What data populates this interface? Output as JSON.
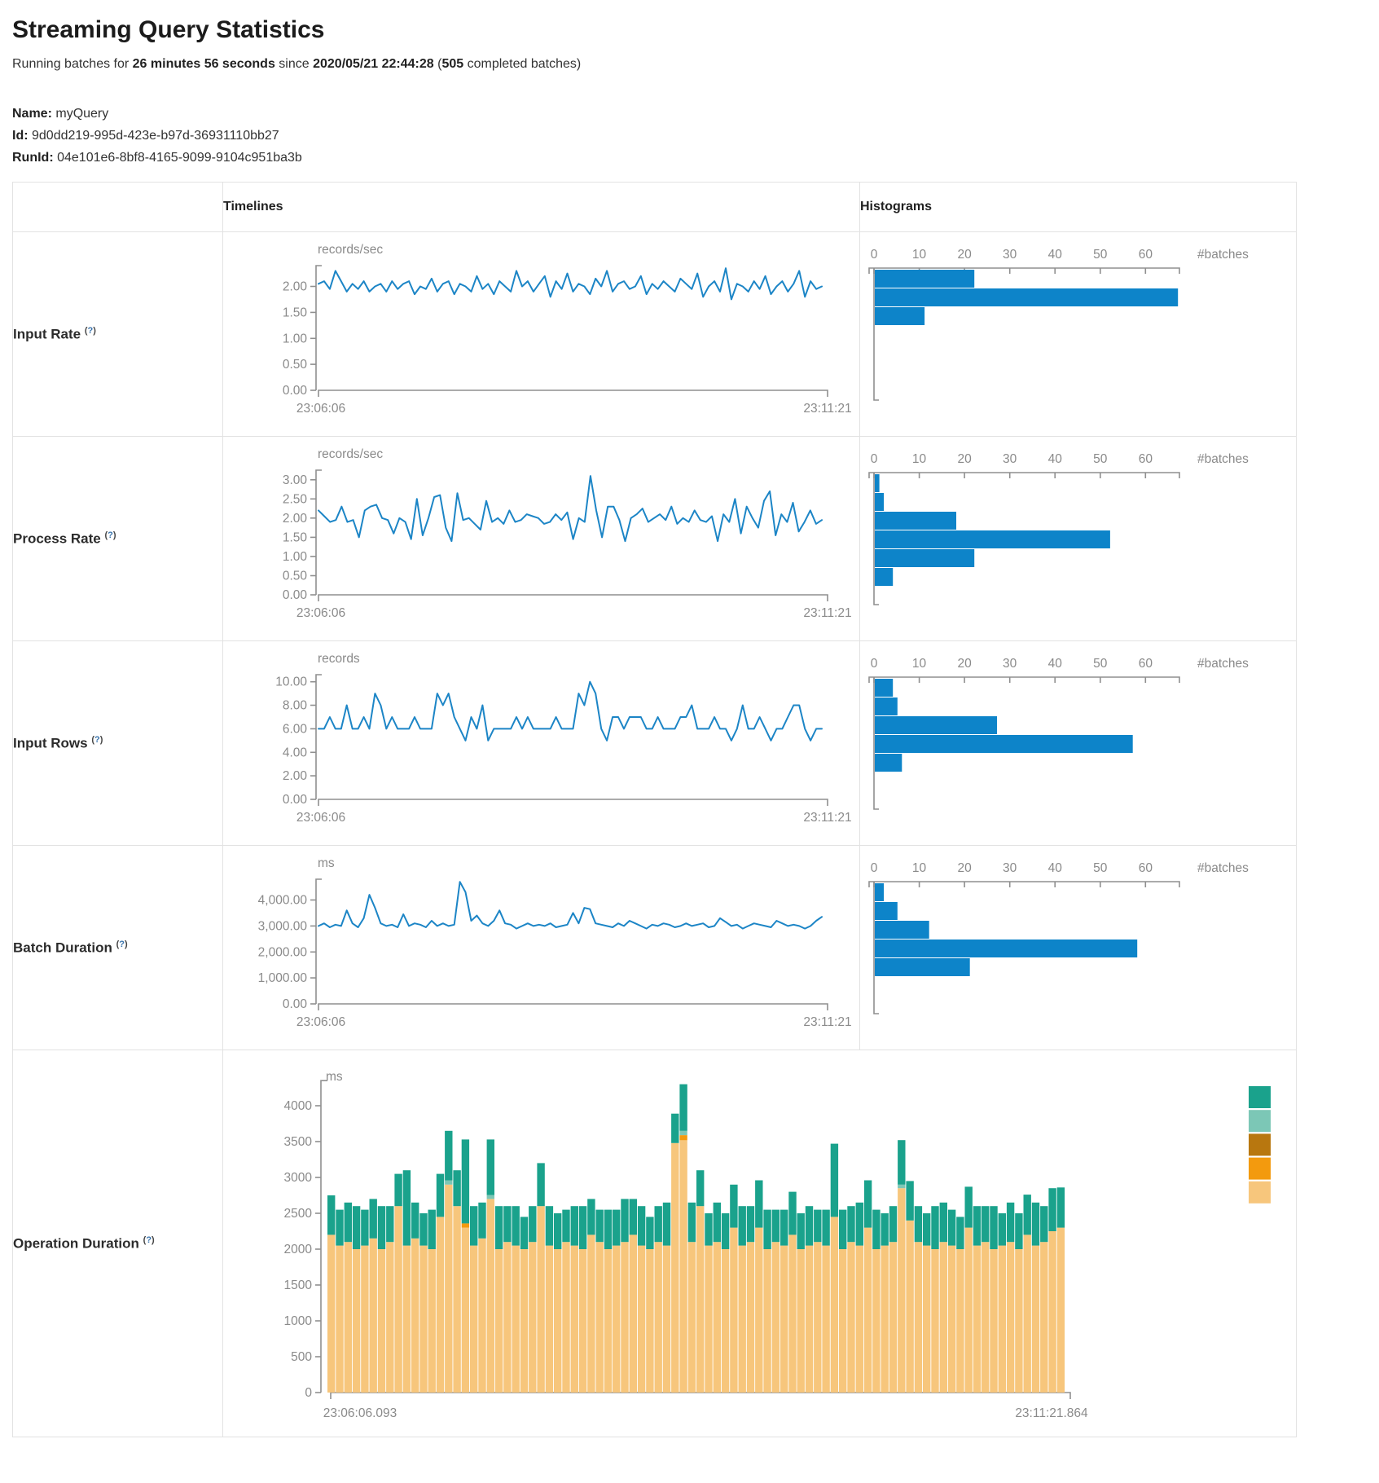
{
  "page": {
    "title": "Streaming Query Statistics",
    "running_prefix": "Running batches for ",
    "duration": "26 minutes 56 seconds",
    "since": " since ",
    "start_time": "2020/05/21 22:44:28",
    "paren_open": " (",
    "completed_batches": "505",
    "paren_close": " completed batches)",
    "name_label": "Name:",
    "name_value": "myQuery",
    "id_label": "Id:",
    "id_value": "9d0dd219-995d-423e-b97d-36931110bb27",
    "runid_label": "RunId:",
    "runid_value": "04e101e6-8bf8-4165-9099-9104c951ba3b"
  },
  "table": {
    "header": {
      "timelines": "Timelines",
      "histograms": "Histograms"
    },
    "help": {
      "open": "(",
      "q": "?",
      "close": ")"
    },
    "rows": [
      {
        "label": "Input Rate"
      },
      {
        "label": "Process Rate"
      },
      {
        "label": "Input Rows"
      },
      {
        "label": "Batch Duration"
      },
      {
        "label": "Operation Duration"
      }
    ]
  },
  "colors": {
    "line": "#1c85c6",
    "bar": "#0d84c9",
    "axis": "#8f8f8f",
    "tick_text": "#8a8a8a",
    "teal": "#1aa28c",
    "light_teal": "#7cc7b6",
    "brown": "#b8770f",
    "orange": "#f39a0e",
    "tan": "#f7c67c"
  },
  "chart_data": [
    {
      "name": "Input Rate",
      "timeline": {
        "type": "line",
        "unit": "records/sec",
        "x_start": "23:06:06",
        "x_end": "23:11:21",
        "y_max": 2.4,
        "y_ticks": [
          {
            "v": 2,
            "t": "2.00"
          },
          {
            "v": 1.5,
            "t": "1.50"
          },
          {
            "v": 1,
            "t": "1.00"
          },
          {
            "v": 0.5,
            "t": "0.50"
          },
          {
            "v": 0,
            "t": "0.00"
          }
        ],
        "values": [
          2.05,
          2.1,
          1.95,
          2.3,
          2.1,
          1.9,
          2.05,
          1.95,
          2.1,
          1.9,
          2.0,
          2.05,
          1.9,
          2.1,
          1.95,
          2.05,
          2.1,
          1.85,
          2.0,
          1.95,
          2.15,
          1.9,
          2.05,
          2.1,
          1.85,
          2.05,
          2.0,
          1.9,
          2.2,
          1.95,
          2.05,
          1.85,
          2.1,
          2.0,
          1.9,
          2.3,
          2.0,
          2.1,
          1.9,
          2.05,
          2.2,
          1.8,
          2.1,
          1.95,
          2.25,
          1.9,
          2.05,
          2.0,
          1.85,
          2.15,
          2.0,
          2.3,
          1.9,
          2.05,
          2.1,
          1.95,
          2.0,
          2.2,
          1.85,
          2.05,
          1.95,
          2.1,
          2.0,
          1.9,
          2.15,
          2.05,
          1.95,
          2.25,
          1.8,
          2.0,
          2.1,
          1.9,
          2.35,
          1.75,
          2.05,
          2.0,
          1.9,
          2.1,
          1.95,
          2.2,
          1.85,
          2.0,
          2.1,
          1.9,
          2.05,
          2.3,
          1.8,
          2.1,
          1.95,
          2.0
        ]
      },
      "histogram": {
        "type": "bar",
        "xlabel": "#batches",
        "x_ticks": [
          0,
          10,
          20,
          30,
          40,
          50,
          60
        ],
        "x_max": 67.5,
        "values": [
          22,
          67,
          11
        ]
      }
    },
    {
      "name": "Process Rate",
      "timeline": {
        "type": "line",
        "unit": "records/sec",
        "x_start": "23:06:06",
        "x_end": "23:11:21",
        "y_max": 3.25,
        "y_ticks": [
          {
            "v": 3,
            "t": "3.00"
          },
          {
            "v": 2.5,
            "t": "2.50"
          },
          {
            "v": 2,
            "t": "2.00"
          },
          {
            "v": 1.5,
            "t": "1.50"
          },
          {
            "v": 1,
            "t": "1.00"
          },
          {
            "v": 0.5,
            "t": "0.50"
          },
          {
            "v": 0,
            "t": "0.00"
          }
        ],
        "values": [
          2.2,
          2.05,
          1.9,
          1.95,
          2.3,
          1.9,
          1.95,
          1.5,
          2.2,
          2.3,
          2.35,
          2.0,
          1.95,
          1.6,
          2.0,
          1.9,
          1.45,
          2.5,
          1.55,
          2.0,
          2.55,
          2.6,
          1.75,
          1.4,
          2.65,
          1.95,
          2.0,
          1.85,
          1.7,
          2.45,
          1.9,
          2.0,
          1.85,
          2.2,
          1.9,
          1.95,
          2.1,
          2.05,
          2.0,
          1.85,
          1.9,
          2.1,
          1.95,
          2.15,
          1.45,
          2.0,
          1.9,
          3.1,
          2.2,
          1.5,
          2.3,
          2.3,
          1.95,
          1.4,
          2.0,
          2.1,
          2.25,
          1.9,
          2.0,
          2.1,
          1.95,
          2.3,
          1.85,
          2.0,
          1.9,
          2.2,
          1.95,
          1.9,
          2.05,
          1.4,
          2.1,
          1.9,
          2.5,
          1.6,
          2.3,
          2.0,
          1.75,
          2.45,
          2.7,
          1.55,
          2.1,
          1.9,
          2.4,
          1.65,
          1.9,
          2.2,
          1.85,
          1.95
        ]
      },
      "histogram": {
        "type": "bar",
        "xlabel": "#batches",
        "x_ticks": [
          0,
          10,
          20,
          30,
          40,
          50,
          60
        ],
        "x_max": 67.5,
        "values": [
          1,
          2,
          18,
          52,
          22,
          4
        ]
      }
    },
    {
      "name": "Input Rows",
      "timeline": {
        "type": "line",
        "unit": "records",
        "x_start": "23:06:06",
        "x_end": "23:11:21",
        "y_max": 10.6,
        "y_ticks": [
          {
            "v": 10,
            "t": "10.00"
          },
          {
            "v": 8,
            "t": "8.00"
          },
          {
            "v": 6,
            "t": "6.00"
          },
          {
            "v": 4,
            "t": "4.00"
          },
          {
            "v": 2,
            "t": "2.00"
          },
          {
            "v": 0,
            "t": "0.00"
          }
        ],
        "values": [
          6,
          6,
          7,
          6,
          6,
          8,
          6,
          6,
          7,
          6,
          9,
          8,
          6,
          7,
          6,
          6,
          6,
          7,
          6,
          6,
          6,
          9,
          8,
          9,
          7,
          6,
          5,
          7,
          6,
          8,
          5,
          6,
          6,
          6,
          6,
          7,
          6,
          7,
          6,
          6,
          6,
          6,
          7,
          6,
          6,
          6,
          9,
          8,
          10,
          9,
          6,
          5,
          7,
          7,
          6,
          7,
          7,
          7,
          6,
          6,
          7,
          6,
          6,
          6,
          7,
          7,
          8,
          6,
          6,
          6,
          7,
          6,
          6,
          5,
          6,
          8,
          6,
          6,
          7,
          6,
          5,
          6,
          6,
          7,
          8,
          8,
          6,
          5,
          6,
          6
        ]
      },
      "histogram": {
        "type": "bar",
        "xlabel": "#batches",
        "x_ticks": [
          0,
          10,
          20,
          30,
          40,
          50,
          60
        ],
        "x_max": 67.5,
        "values": [
          4,
          5,
          27,
          57,
          6
        ]
      }
    },
    {
      "name": "Batch Duration",
      "timeline": {
        "type": "line",
        "unit": "ms",
        "x_start": "23:06:06",
        "x_end": "23:11:21",
        "y_max": 4800,
        "y_ticks": [
          {
            "v": 4000,
            "t": "4,000.00"
          },
          {
            "v": 3000,
            "t": "3,000.00"
          },
          {
            "v": 2000,
            "t": "2,000.00"
          },
          {
            "v": 1000,
            "t": "1,000.00"
          },
          {
            "v": 0,
            "t": "0.00"
          }
        ],
        "values": [
          3000,
          3100,
          2950,
          3050,
          3000,
          3600,
          3100,
          2950,
          3300,
          4200,
          3700,
          3100,
          3000,
          3050,
          2950,
          3450,
          3000,
          3100,
          3050,
          2950,
          3200,
          3000,
          3100,
          3000,
          3050,
          4700,
          4300,
          3200,
          3400,
          3100,
          3000,
          3200,
          3600,
          3100,
          3050,
          2900,
          3000,
          3100,
          3000,
          3050,
          3000,
          3100,
          2950,
          3000,
          3050,
          3500,
          3100,
          3700,
          3650,
          3100,
          3050,
          3000,
          2950,
          3100,
          3000,
          3200,
          3100,
          3000,
          2900,
          3050,
          3000,
          3100,
          3050,
          2950,
          3000,
          3100,
          3000,
          3050,
          3100,
          2950,
          3000,
          3300,
          3150,
          3000,
          3050,
          2900,
          3000,
          3100,
          3050,
          3000,
          2950,
          3200,
          3100,
          3000,
          3050,
          3000,
          2900,
          3000,
          3200,
          3350
        ]
      },
      "histogram": {
        "type": "bar",
        "xlabel": "#batches",
        "x_ticks": [
          0,
          10,
          20,
          30,
          40,
          50,
          60
        ],
        "x_max": 67.5,
        "values": [
          2,
          5,
          12,
          58,
          21
        ]
      }
    },
    {
      "name": "Operation Duration",
      "stacked": {
        "type": "stacked-bar",
        "unit": "ms",
        "x_start": "23:06:06.093",
        "x_end": "23:11:21.864",
        "y_max": 4350,
        "y_ticks": [
          {
            "v": 4000,
            "t": "4000"
          },
          {
            "v": 3500,
            "t": "3500"
          },
          {
            "v": 3000,
            "t": "3000"
          },
          {
            "v": 2500,
            "t": "2500"
          },
          {
            "v": 2000,
            "t": "2000"
          },
          {
            "v": 1500,
            "t": "1500"
          },
          {
            "v": 1000,
            "t": "1000"
          },
          {
            "v": 500,
            "t": "500"
          },
          {
            "v": 0,
            "t": "0"
          }
        ],
        "series": {
          "tan": [
            2200,
            2050,
            2100,
            2000,
            2050,
            2150,
            2000,
            2100,
            2600,
            2050,
            2150,
            2050,
            2000,
            2450,
            2900,
            2600,
            2300,
            2050,
            2150,
            2700,
            2000,
            2100,
            2050,
            2000,
            2100,
            2600,
            2050,
            2000,
            2100,
            2050,
            2000,
            2200,
            2100,
            2000,
            2050,
            2100,
            2200,
            2050,
            2000,
            2100,
            2050,
            3480,
            3520,
            2100,
            2600,
            2050,
            2100,
            2000,
            2300,
            2050,
            2100,
            2300,
            2000,
            2100,
            2050,
            2200,
            2000,
            2050,
            2100,
            2050,
            2450,
            2000,
            2100,
            2050,
            2300,
            2000,
            2050,
            2100,
            2850,
            2400,
            2100,
            2050,
            2000,
            2100,
            2050,
            2000,
            2300,
            2050,
            2100,
            2000,
            2050,
            2100,
            2000,
            2200,
            2050,
            2100,
            2250,
            2300
          ],
          "teal": [
            550,
            500,
            550,
            600,
            500,
            550,
            600,
            500,
            450,
            1050,
            500,
            450,
            550,
            600,
            690,
            500,
            1170,
            550,
            500,
            775,
            600,
            500,
            550,
            450,
            500,
            600,
            550,
            500,
            450,
            550,
            600,
            500,
            450,
            550,
            500,
            600,
            500,
            550,
            450,
            500,
            600,
            410,
            650,
            550,
            500,
            450,
            550,
            500,
            600,
            550,
            500,
            660,
            550,
            450,
            500,
            600,
            500,
            550,
            450,
            500,
            1020,
            550,
            500,
            600,
            660,
            550,
            450,
            500,
            620,
            550,
            500,
            450,
            600,
            550,
            500,
            450,
            570,
            550,
            500,
            600,
            450,
            550,
            500,
            560,
            600,
            500,
            600,
            560
          ]
        },
        "extras": {
          "light_teal": {
            "14": 60,
            "19": 55,
            "42": 60,
            "68": 50
          },
          "orange": {
            "16": 60,
            "42": 70
          }
        },
        "legend": [
          "teal",
          "light_teal",
          "brown",
          "orange",
          "tan"
        ]
      }
    }
  ]
}
